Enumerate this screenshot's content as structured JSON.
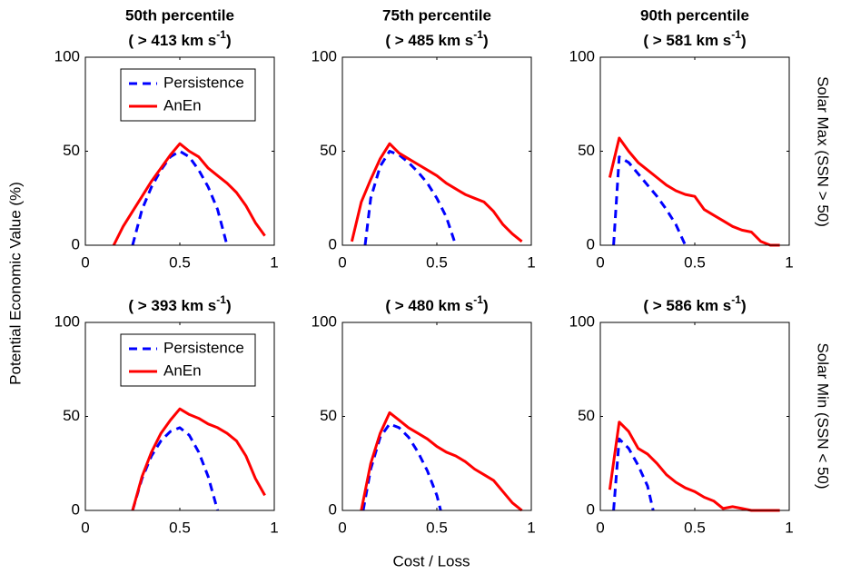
{
  "y_label": "Potential Economic Value (%)",
  "x_label": "Cost / Loss",
  "row_labels": [
    "Solar Max (SSN > 50)",
    "Solar Min (SSN < 50)"
  ],
  "chart_data": [
    {
      "type": "line",
      "title": "50th percentile",
      "subtitle": [
        "( > 413 km s",
        "-1",
        ")"
      ],
      "legend": "north",
      "xlim": [
        0,
        1
      ],
      "xticks": [
        0,
        0.5,
        1
      ],
      "ylim": [
        0,
        100
      ],
      "yticks": [
        0,
        50,
        100
      ],
      "series": [
        {
          "name": "Persistence",
          "color": "#0000ff",
          "style": "dashed",
          "x": [
            0.25,
            0.3,
            0.35,
            0.4,
            0.45,
            0.5,
            0.55,
            0.6,
            0.65,
            0.7,
            0.75
          ],
          "values": [
            0,
            19,
            31,
            40,
            47,
            50,
            47,
            40,
            31,
            19,
            0
          ]
        },
        {
          "name": "AnEn",
          "color": "#ff0000",
          "style": "solid",
          "x": [
            0.15,
            0.2,
            0.25,
            0.3,
            0.35,
            0.4,
            0.45,
            0.5,
            0.55,
            0.6,
            0.65,
            0.7,
            0.75,
            0.8,
            0.85,
            0.9,
            0.95
          ],
          "values": [
            0,
            10,
            18,
            26,
            34,
            41,
            48,
            54,
            50,
            47,
            41,
            37,
            33,
            28,
            21,
            12,
            5
          ]
        }
      ]
    },
    {
      "type": "line",
      "title": "75th percentile",
      "subtitle": [
        "( > 485 km s",
        "-1",
        ")"
      ],
      "xlim": [
        0,
        1
      ],
      "xticks": [
        0,
        0.5,
        1
      ],
      "ylim": [
        0,
        100
      ],
      "yticks": [
        0,
        50,
        100
      ],
      "series": [
        {
          "name": "Persistence",
          "color": "#0000ff",
          "style": "dashed",
          "x": [
            0.12,
            0.15,
            0.2,
            0.25,
            0.3,
            0.35,
            0.4,
            0.45,
            0.5,
            0.55,
            0.6
          ],
          "values": [
            0,
            25,
            42,
            50,
            48,
            44,
            39,
            33,
            25,
            15,
            0
          ]
        },
        {
          "name": "AnEn",
          "color": "#ff0000",
          "style": "solid",
          "x": [
            0.05,
            0.1,
            0.15,
            0.2,
            0.25,
            0.3,
            0.35,
            0.4,
            0.45,
            0.5,
            0.55,
            0.6,
            0.65,
            0.7,
            0.75,
            0.8,
            0.85,
            0.9,
            0.95
          ],
          "values": [
            2,
            23,
            35,
            46,
            54,
            49,
            46,
            43,
            40,
            37,
            33,
            30,
            27,
            25,
            23,
            18,
            11,
            6,
            2
          ]
        }
      ]
    },
    {
      "type": "line",
      "title": "90th percentile",
      "subtitle": [
        "( > 581 km s",
        "-1",
        ")"
      ],
      "xlim": [
        0,
        1
      ],
      "xticks": [
        0,
        0.5,
        1
      ],
      "ylim": [
        0,
        100
      ],
      "yticks": [
        0,
        50,
        100
      ],
      "series": [
        {
          "name": "Persistence",
          "color": "#0000ff",
          "style": "dashed",
          "x": [
            0.07,
            0.1,
            0.15,
            0.2,
            0.25,
            0.3,
            0.35,
            0.4,
            0.45
          ],
          "values": [
            0,
            47,
            44,
            38,
            32,
            26,
            19,
            11,
            0
          ]
        },
        {
          "name": "AnEn",
          "color": "#ff0000",
          "style": "solid",
          "x": [
            0.05,
            0.1,
            0.15,
            0.2,
            0.25,
            0.3,
            0.35,
            0.4,
            0.45,
            0.5,
            0.55,
            0.6,
            0.65,
            0.7,
            0.75,
            0.8,
            0.85,
            0.9,
            0.95
          ],
          "values": [
            36,
            57,
            50,
            44,
            40,
            36,
            32,
            29,
            27,
            26,
            19,
            16,
            13,
            10,
            8,
            7,
            2,
            0,
            0
          ]
        }
      ]
    },
    {
      "type": "line",
      "subtitle": [
        "( > 393 km s",
        "-1",
        ")"
      ],
      "legend": "north",
      "xlim": [
        0,
        1
      ],
      "xticks": [
        0,
        0.5,
        1
      ],
      "ylim": [
        0,
        100
      ],
      "yticks": [
        0,
        50,
        100
      ],
      "series": [
        {
          "name": "Persistence",
          "color": "#0000ff",
          "style": "dashed",
          "x": [
            0.25,
            0.3,
            0.35,
            0.4,
            0.45,
            0.5,
            0.55,
            0.6,
            0.65,
            0.7
          ],
          "values": [
            0,
            17,
            29,
            37,
            42,
            44,
            40,
            31,
            18,
            0
          ]
        },
        {
          "name": "AnEn",
          "color": "#ff0000",
          "style": "solid",
          "x": [
            0.25,
            0.3,
            0.35,
            0.4,
            0.45,
            0.5,
            0.55,
            0.6,
            0.65,
            0.7,
            0.75,
            0.8,
            0.85,
            0.9,
            0.95
          ],
          "values": [
            0,
            18,
            31,
            41,
            48,
            54,
            51,
            49,
            46,
            44,
            41,
            37,
            29,
            17,
            8
          ]
        }
      ]
    },
    {
      "type": "line",
      "subtitle": [
        "( > 480 km s",
        "-1",
        ")"
      ],
      "xlim": [
        0,
        1
      ],
      "xticks": [
        0,
        0.5,
        1
      ],
      "ylim": [
        0,
        100
      ],
      "yticks": [
        0,
        50,
        100
      ],
      "series": [
        {
          "name": "Persistence",
          "color": "#0000ff",
          "style": "dashed",
          "x": [
            0.11,
            0.15,
            0.2,
            0.25,
            0.3,
            0.35,
            0.4,
            0.45,
            0.5,
            0.52
          ],
          "values": [
            0,
            22,
            39,
            46,
            44,
            39,
            31,
            21,
            8,
            0
          ]
        },
        {
          "name": "AnEn",
          "color": "#ff0000",
          "style": "solid",
          "x": [
            0.1,
            0.15,
            0.2,
            0.25,
            0.3,
            0.35,
            0.4,
            0.45,
            0.5,
            0.55,
            0.6,
            0.65,
            0.7,
            0.75,
            0.8,
            0.85,
            0.9,
            0.95
          ],
          "values": [
            0,
            25,
            41,
            52,
            48,
            44,
            41,
            38,
            34,
            31,
            29,
            26,
            22,
            19,
            16,
            10,
            4,
            0
          ]
        }
      ]
    },
    {
      "type": "line",
      "subtitle": [
        "( > 586 km s",
        "-1",
        ")"
      ],
      "xlim": [
        0,
        1
      ],
      "xticks": [
        0,
        0.5,
        1
      ],
      "ylim": [
        0,
        100
      ],
      "yticks": [
        0,
        50,
        100
      ],
      "series": [
        {
          "name": "Persistence",
          "color": "#0000ff",
          "style": "dashed",
          "x": [
            0.07,
            0.1,
            0.15,
            0.2,
            0.25,
            0.28
          ],
          "values": [
            0,
            38,
            33,
            24,
            13,
            0
          ]
        },
        {
          "name": "AnEn",
          "color": "#ff0000",
          "style": "solid",
          "x": [
            0.05,
            0.1,
            0.15,
            0.2,
            0.25,
            0.3,
            0.35,
            0.4,
            0.45,
            0.5,
            0.55,
            0.6,
            0.65,
            0.7,
            0.75,
            0.8,
            0.85,
            0.9,
            0.95
          ],
          "values": [
            11,
            47,
            42,
            33,
            30,
            25,
            19,
            15,
            12,
            10,
            7,
            5,
            1,
            2,
            1,
            0,
            0,
            0,
            0
          ]
        }
      ]
    }
  ]
}
